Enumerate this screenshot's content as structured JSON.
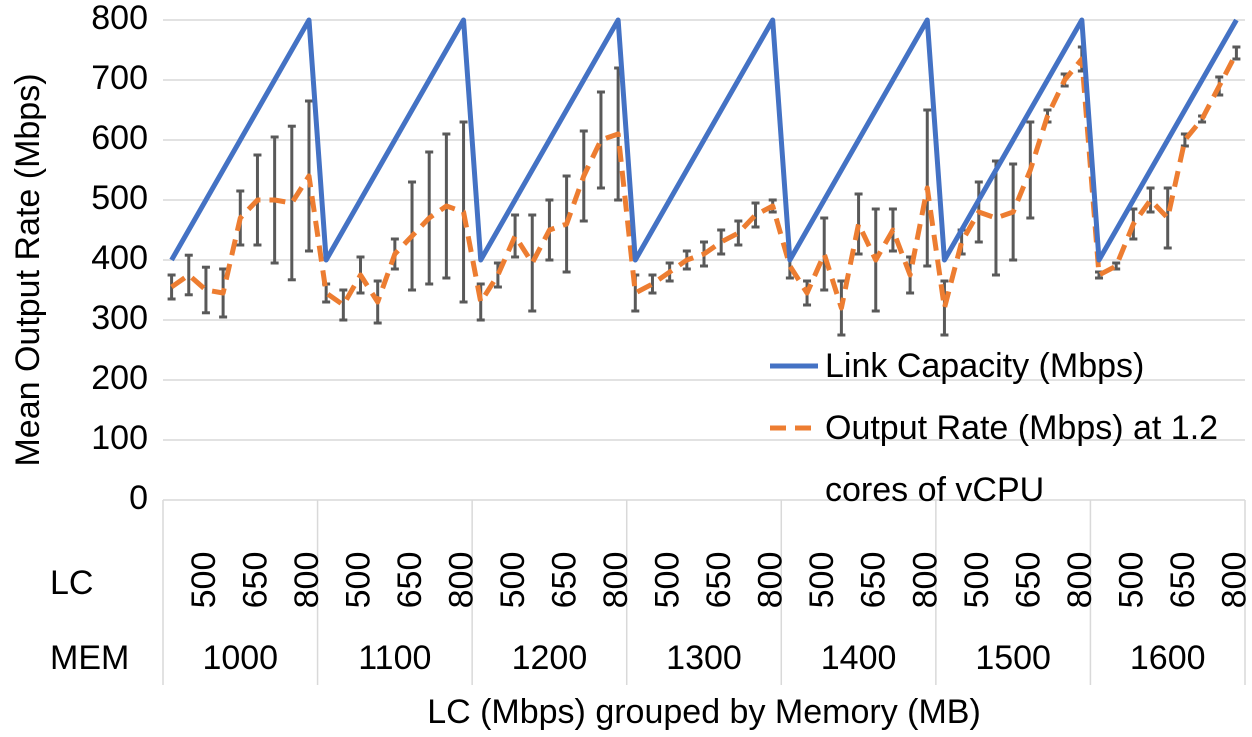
{
  "chart_data": {
    "type": "line",
    "y_label": "Mean Output Rate (Mbps)",
    "x_label": "LC (Mbps) grouped by Memory (MB)",
    "category_levels": [
      "LC",
      "MEM"
    ],
    "categories": [
      null,
      null,
      500,
      null,
      null,
      650,
      null,
      null,
      800,
      null,
      null,
      500,
      null,
      null,
      650,
      null,
      null,
      800,
      null,
      null,
      500,
      null,
      null,
      650,
      null,
      null,
      800,
      null,
      null,
      500,
      null,
      null,
      650,
      null,
      null,
      800,
      null,
      null,
      500,
      null,
      null,
      650,
      null,
      null,
      800,
      null,
      null,
      500,
      null,
      null,
      650,
      null,
      null,
      800,
      null,
      null,
      500,
      null,
      null,
      650,
      null,
      null,
      800
    ],
    "groups": [
      1000,
      1100,
      1200,
      1300,
      1400,
      1500,
      1600
    ],
    "ylim": [
      0,
      800
    ],
    "yticks": [
      0,
      100,
      200,
      300,
      400,
      500,
      600,
      700,
      800
    ],
    "grid": true,
    "legend": "bottom-right",
    "series": [
      {
        "name": "Link Capacity (Mbps)",
        "color": "#4472c4",
        "dash": false,
        "values": [
          400,
          450,
          500,
          550,
          600,
          650,
          700,
          750,
          800,
          400,
          450,
          500,
          550,
          600,
          650,
          700,
          750,
          800,
          400,
          450,
          500,
          550,
          600,
          650,
          700,
          750,
          800,
          400,
          450,
          500,
          550,
          600,
          650,
          700,
          750,
          800,
          400,
          450,
          500,
          550,
          600,
          650,
          700,
          750,
          800,
          400,
          450,
          500,
          550,
          600,
          650,
          700,
          750,
          800,
          400,
          450,
          500,
          550,
          600,
          650,
          700,
          750,
          800
        ]
      },
      {
        "name": "Output Rate (Mbps) at 1.2 cores of vCPU",
        "color": "#ed7d31",
        "dash": true,
        "error_color": "#595959",
        "values": [
          355,
          375,
          350,
          345,
          470,
          500,
          500,
          495,
          540,
          345,
          325,
          375,
          330,
          410,
          440,
          470,
          490,
          480,
          330,
          375,
          440,
          395,
          450,
          460,
          540,
          600,
          610,
          345,
          360,
          380,
          400,
          410,
          430,
          445,
          475,
          490,
          390,
          345,
          410,
          320,
          460,
          400,
          450,
          375,
          520,
          320,
          430,
          480,
          470,
          480,
          550,
          640,
          700,
          735,
          375,
          390,
          460,
          500,
          470,
          600,
          635,
          690,
          745
        ],
        "errors": [
          20,
          33,
          38,
          40,
          45,
          75,
          105,
          128,
          125,
          15,
          25,
          30,
          35,
          25,
          90,
          110,
          120,
          150,
          30,
          20,
          35,
          80,
          50,
          80,
          75,
          80,
          110,
          30,
          15,
          15,
          15,
          20,
          20,
          20,
          20,
          10,
          20,
          20,
          60,
          45,
          50,
          85,
          35,
          30,
          130,
          45,
          20,
          50,
          95,
          80,
          80,
          10,
          10,
          20,
          5,
          5,
          25,
          20,
          50,
          10,
          5,
          15,
          10
        ]
      }
    ]
  }
}
